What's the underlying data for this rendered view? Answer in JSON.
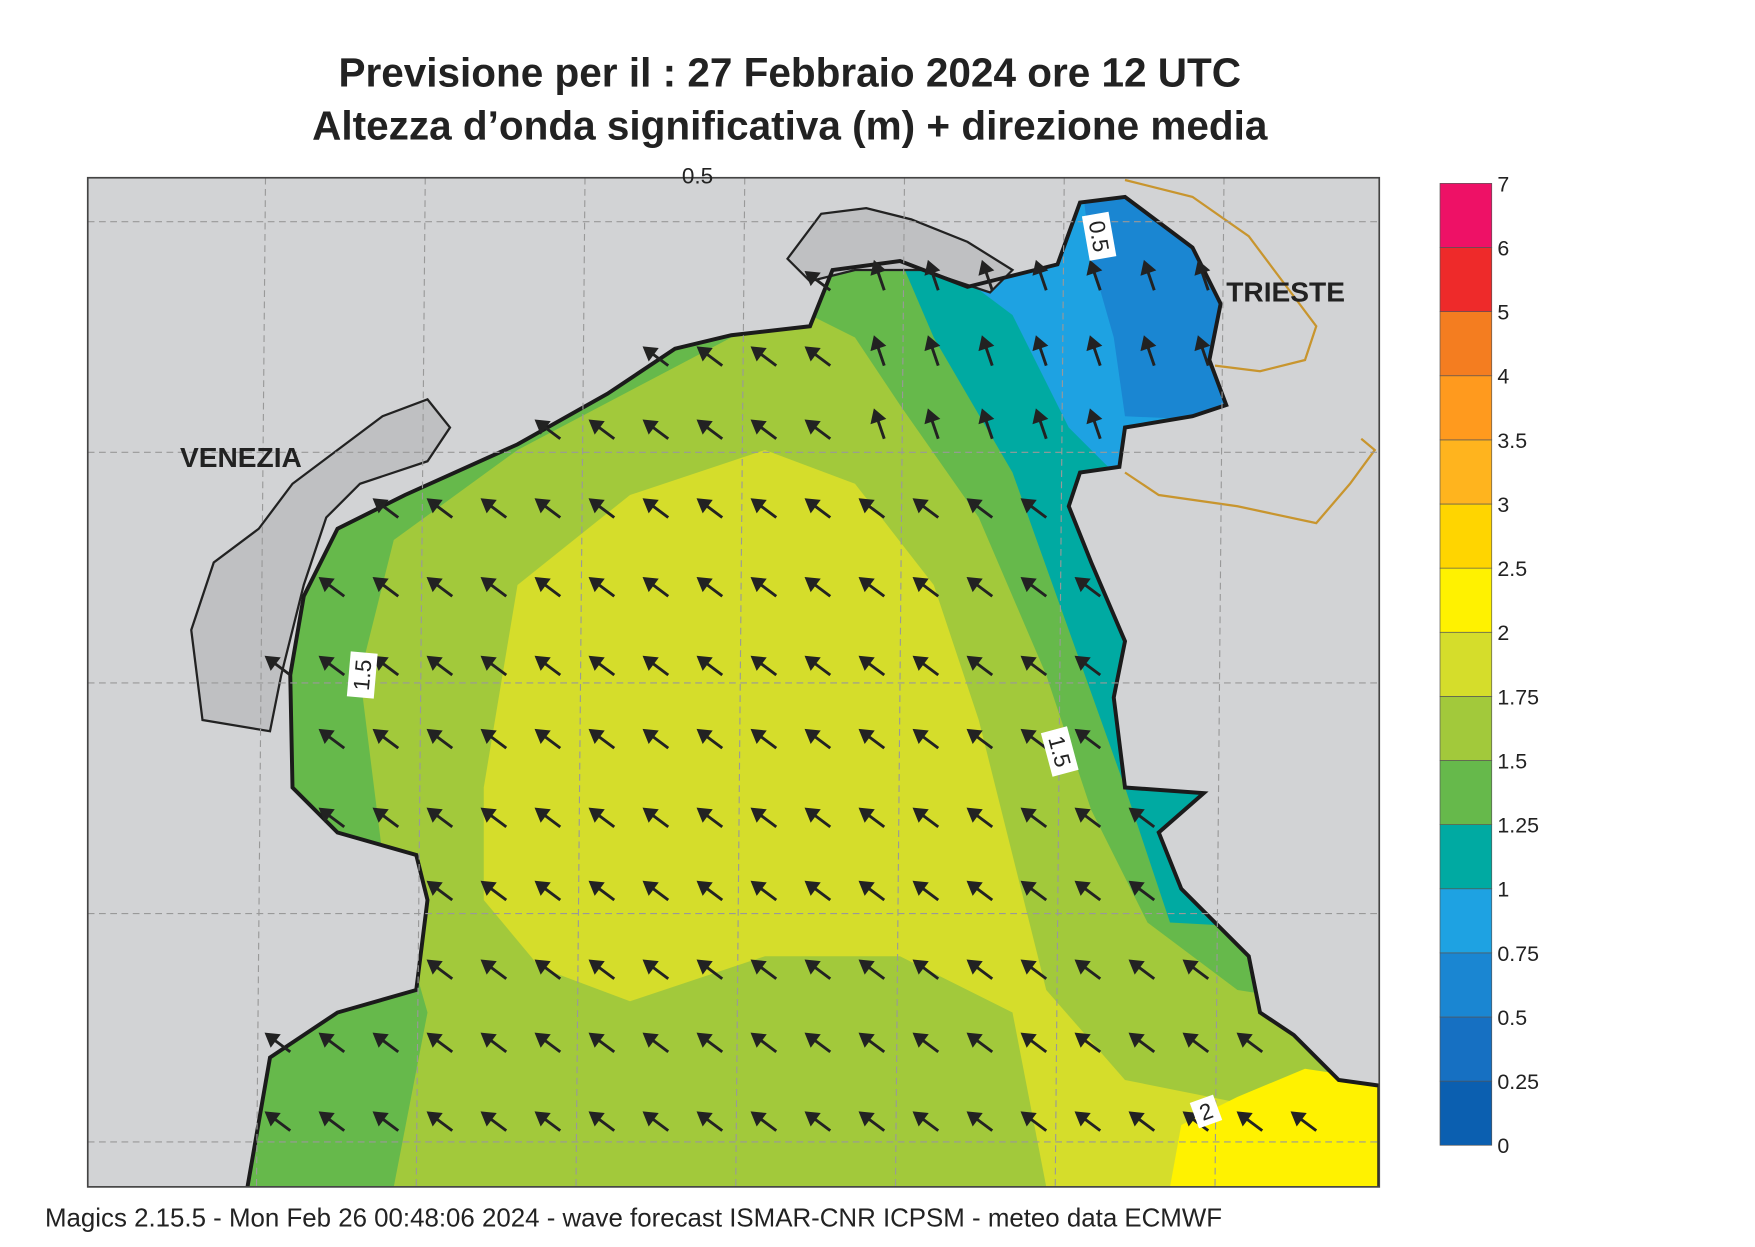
{
  "header": {
    "title": "Previsione per il  :  27  Febbraio 2024   ore 12 UTC",
    "subtitle": "Altezza d’onda significativa (m) + direzione media"
  },
  "map": {
    "place_labels": [
      "VENEZIA",
      "TRIESTE"
    ],
    "contour_labels": [
      "0.5",
      "0.5",
      "1.5",
      "1.5",
      "2"
    ]
  },
  "legend": {
    "ticks": [
      "0",
      "0.25",
      "0.5",
      "0.75",
      "1",
      "1.25",
      "1.5",
      "1.75",
      "2",
      "2.5",
      "3",
      "3.5",
      "4",
      "5",
      "6",
      "7"
    ],
    "colors": [
      "#0b5fb0",
      "#1670c2",
      "#1a86d2",
      "#1ea2e2",
      "#00aaa2",
      "#66b94b",
      "#a2c93b",
      "#d5dd2b",
      "#fff200",
      "#ffd500",
      "#ffb41e",
      "#ff9a1e",
      "#f47d20",
      "#ee2a2a",
      "#ee1166"
    ]
  },
  "footer": "Magics 2.15.5 - Mon Feb 26 00:48:06 2024 - wave forecast  ISMAR-CNR  ICPSM - meteo data   ECMWF"
}
